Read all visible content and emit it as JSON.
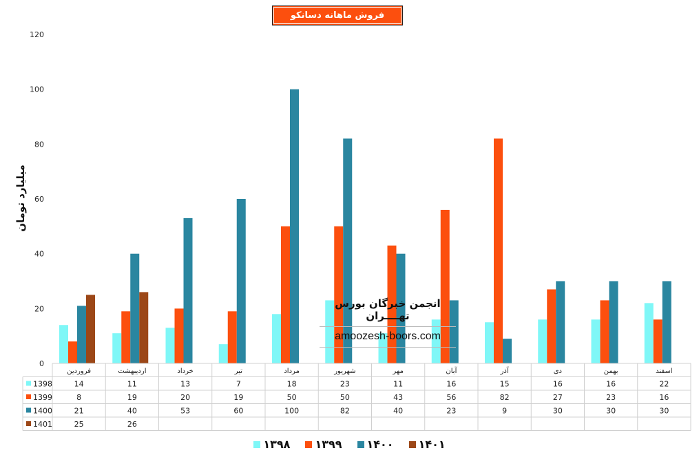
{
  "chart_data": {
    "type": "bar",
    "title": "فروش ماهانه دسانکو",
    "xlabel": "",
    "ylabel": "میلیارد تومان",
    "ylim": [
      0,
      120
    ],
    "yticks": [
      "0",
      "20",
      "40",
      "60",
      "80",
      "100",
      "120"
    ],
    "grid": false,
    "legend_position": "bottom",
    "data_table": true,
    "categories": [
      "فروردین",
      "اردیبهشت",
      "خرداد",
      "تیر",
      "مرداد",
      "شهریور",
      "مهر",
      "آبان",
      "آذر",
      "دی",
      "بهمن",
      "اسفند"
    ],
    "series": [
      {
        "name": "1398",
        "legend_label": "۱۳۹۸",
        "color": "#7ff7f7",
        "values": [
          14,
          11,
          13,
          7,
          18,
          23,
          11,
          16,
          15,
          16,
          16,
          22
        ]
      },
      {
        "name": "1399",
        "legend_label": "۱۳۹۹",
        "color": "#fc4f0e",
        "values": [
          8,
          19,
          20,
          19,
          50,
          50,
          43,
          56,
          82,
          27,
          23,
          16
        ]
      },
      {
        "name": "1400",
        "legend_label": "۱۴۰۰",
        "color": "#2a86a0",
        "values": [
          21,
          40,
          53,
          60,
          100,
          82,
          40,
          23,
          9,
          30,
          30,
          30
        ]
      },
      {
        "name": "1401",
        "legend_label": "۱۴۰۱",
        "color": "#9c4717",
        "values": [
          25,
          26,
          null,
          null,
          null,
          null,
          null,
          null,
          null,
          null,
          null,
          null
        ]
      }
    ]
  },
  "watermark": {
    "line1": "انجمن خبرگان بورس تهــــران",
    "line2": "amoozesh-boors.com"
  }
}
